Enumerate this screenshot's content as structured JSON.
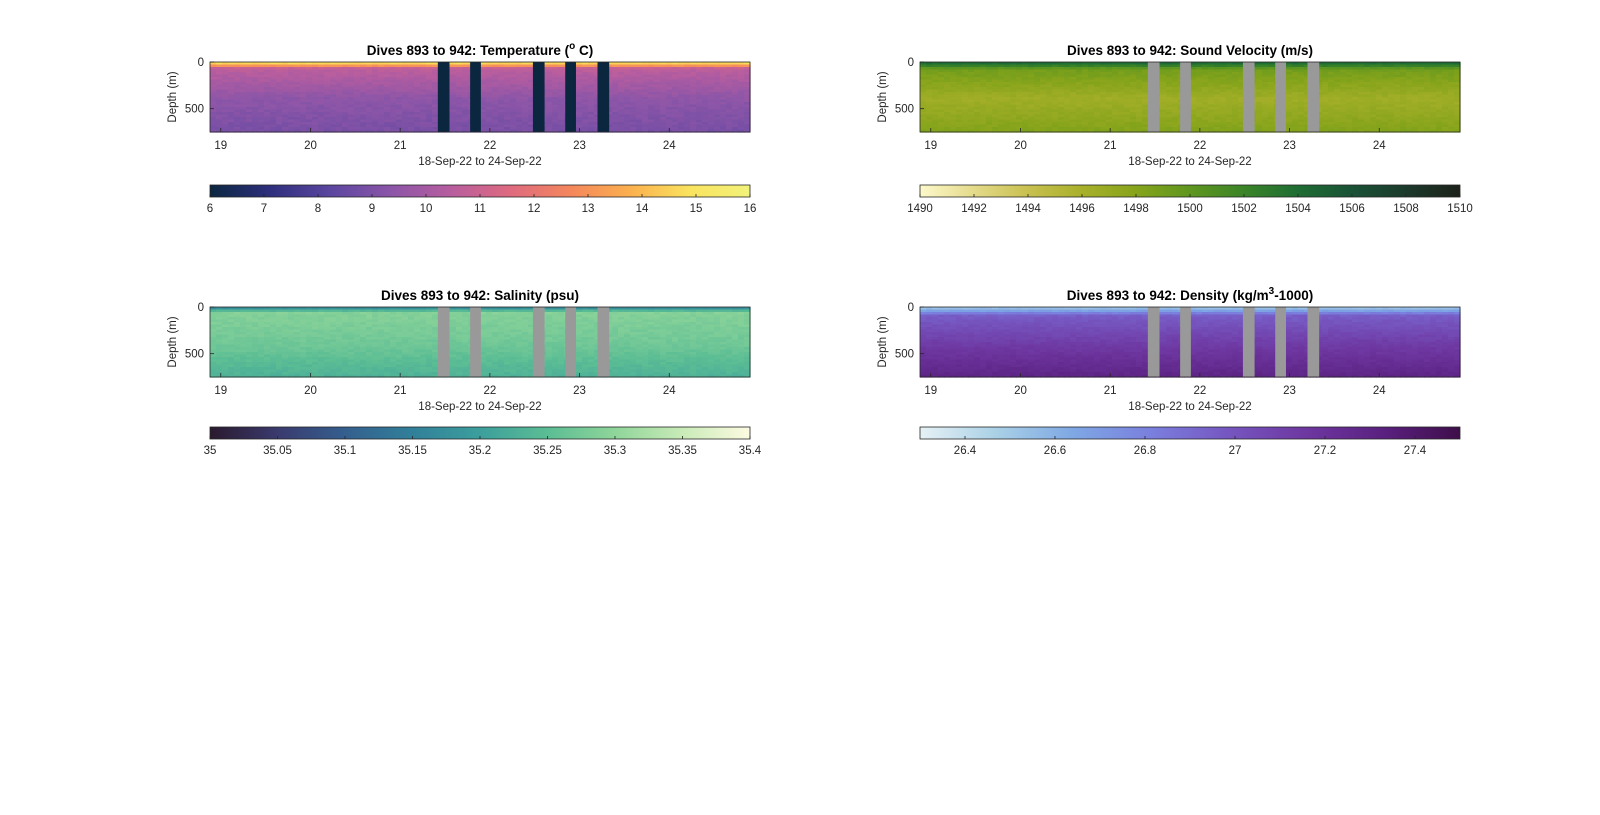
{
  "chart_data": [
    {
      "type": "heatmap",
      "title_prefix": "Dives 893 to 942: Temperature (",
      "title_sup": "o",
      "title_suffix": " C)",
      "xlabel": "18-Sep-22 to 24-Sep-22",
      "ylabel": "Depth (m)",
      "x_ticks": [
        "19",
        "20",
        "21",
        "22",
        "23",
        "24"
      ],
      "x_tick_values": [
        19,
        20,
        21,
        22,
        23,
        24
      ],
      "xlim": [
        18.88,
        24.9
      ],
      "y_ticks": [
        "0",
        "500"
      ],
      "y_tick_values": [
        0,
        500
      ],
      "ylim": [
        0,
        750
      ],
      "colorbar": {
        "ticks": [
          "6",
          "7",
          "8",
          "9",
          "10",
          "11",
          "12",
          "13",
          "14",
          "15",
          "16"
        ],
        "tick_values": [
          6,
          7,
          8,
          9,
          10,
          11,
          12,
          13,
          14,
          15,
          16
        ],
        "range": [
          6,
          16
        ],
        "colors": [
          "#0b2740",
          "#2e2f7d",
          "#5b46a0",
          "#8b55a8",
          "#b75d9f",
          "#de6a80",
          "#f4865c",
          "#fbb04e",
          "#f9e35f",
          "#f2f27a"
        ]
      },
      "field": {
        "surface_value": 14.6,
        "thermocline_value": 10.6,
        "deep_value": 9.4,
        "bottom_value": 8.9,
        "mixed_layer_depth": 20,
        "thermocline_depth": 70
      },
      "gaps": [
        [
          21.42,
          21.55
        ],
        [
          21.78,
          21.9
        ],
        [
          22.48,
          22.61
        ],
        [
          22.84,
          22.96
        ],
        [
          23.2,
          23.33
        ]
      ],
      "gap_color": "#0b2740"
    },
    {
      "type": "heatmap",
      "title_prefix": "Dives 893 to 942: Sound Velocity (m/s)",
      "title_sup": "",
      "title_suffix": "",
      "xlabel": "18-Sep-22 to 24-Sep-22",
      "ylabel": "Depth (m)",
      "x_ticks": [
        "19",
        "20",
        "21",
        "22",
        "23",
        "24"
      ],
      "x_tick_values": [
        19,
        20,
        21,
        22,
        23,
        24
      ],
      "xlim": [
        18.88,
        24.9
      ],
      "y_ticks": [
        "0",
        "500"
      ],
      "y_tick_values": [
        0,
        500
      ],
      "ylim": [
        0,
        750
      ],
      "colorbar": {
        "ticks": [
          "1490",
          "1492",
          "1494",
          "1496",
          "1498",
          "1500",
          "1502",
          "1504",
          "1506",
          "1508",
          "1510"
        ],
        "tick_values": [
          1490,
          1492,
          1494,
          1496,
          1498,
          1500,
          1502,
          1504,
          1506,
          1508,
          1510
        ],
        "range": [
          1490,
          1510
        ],
        "colors": [
          "#fdf9cb",
          "#e4da8a",
          "#c8c050",
          "#a8b02a",
          "#86a41b",
          "#5f961f",
          "#3b8428",
          "#1e6d33",
          "#1a5236",
          "#1c3a2c",
          "#1d2119"
        ]
      },
      "field": {
        "surface_value": 1504,
        "thermocline_value": 1499,
        "deep_value": 1496.5,
        "bottom_value": 1498.2,
        "mixed_layer_depth": 20,
        "thermocline_depth": 80
      },
      "gaps": [
        [
          21.42,
          21.55
        ],
        [
          21.78,
          21.9
        ],
        [
          22.48,
          22.61
        ],
        [
          22.84,
          22.96
        ],
        [
          23.2,
          23.33
        ]
      ],
      "gap_color": "#999999"
    },
    {
      "type": "heatmap",
      "title_prefix": "Dives 893 to 942: Salinity (psu)",
      "title_sup": "",
      "title_suffix": "",
      "xlabel": "18-Sep-22 to 24-Sep-22",
      "ylabel": "Depth (m)",
      "x_ticks": [
        "19",
        "20",
        "21",
        "22",
        "23",
        "24"
      ],
      "x_tick_values": [
        19,
        20,
        21,
        22,
        23,
        24
      ],
      "xlim": [
        18.88,
        24.9
      ],
      "y_ticks": [
        "0",
        "500"
      ],
      "y_tick_values": [
        0,
        500
      ],
      "ylim": [
        0,
        750
      ],
      "colorbar": {
        "ticks": [
          "35",
          "35.05",
          "35.1",
          "35.15",
          "35.2",
          "35.25",
          "35.3",
          "35.35",
          "35.4"
        ],
        "tick_values": [
          35,
          35.05,
          35.1,
          35.15,
          35.2,
          35.25,
          35.3,
          35.35,
          35.4
        ],
        "range": [
          35,
          35.4
        ],
        "colors": [
          "#2a1a2e",
          "#3a3a6e",
          "#345f8e",
          "#31809a",
          "#3c9f9c",
          "#5bbd94",
          "#8fd59a",
          "#c9ebb8",
          "#fdfbe1"
        ]
      },
      "field": {
        "surface_value": 35.18,
        "thermocline_value": 35.29,
        "deep_value": 35.27,
        "bottom_value": 35.23,
        "mixed_layer_depth": 15,
        "thermocline_depth": 60
      },
      "gaps": [
        [
          21.42,
          21.55
        ],
        [
          21.78,
          21.9
        ],
        [
          22.48,
          22.61
        ],
        [
          22.84,
          22.96
        ],
        [
          23.2,
          23.33
        ]
      ],
      "gap_color": "#999999"
    },
    {
      "type": "heatmap",
      "title_prefix": "Dives 893 to 942: Density (kg/m",
      "title_sup": "3",
      "title_suffix": "-1000)",
      "xlabel": "18-Sep-22 to 24-Sep-22",
      "ylabel": "Depth (m)",
      "x_ticks": [
        "19",
        "20",
        "21",
        "22",
        "23",
        "24"
      ],
      "x_tick_values": [
        19,
        20,
        21,
        22,
        23,
        24
      ],
      "xlim": [
        18.88,
        24.9
      ],
      "y_ticks": [
        "0",
        "500"
      ],
      "y_tick_values": [
        0,
        500
      ],
      "ylim": [
        0,
        750
      ],
      "colorbar": {
        "ticks": [
          "26.4",
          "26.6",
          "26.8",
          "27",
          "27.2",
          "27.4"
        ],
        "tick_values": [
          26.4,
          26.6,
          26.8,
          27,
          27.2,
          27.4
        ],
        "range": [
          26.3,
          27.5
        ],
        "colors": [
          "#e6f1f5",
          "#a9d0e6",
          "#7ea7e4",
          "#7a7fde",
          "#7656c0",
          "#6e37a1",
          "#5a2180",
          "#3e0e4a"
        ]
      },
      "field": {
        "surface_value": 26.55,
        "thermocline_value": 26.95,
        "deep_value": 27.13,
        "bottom_value": 27.3,
        "mixed_layer_depth": 20,
        "thermocline_depth": 90
      },
      "gaps": [
        [
          21.42,
          21.55
        ],
        [
          21.78,
          21.9
        ],
        [
          22.48,
          22.61
        ],
        [
          22.84,
          22.96
        ],
        [
          23.2,
          23.33
        ]
      ],
      "gap_color": "#999999"
    }
  ]
}
